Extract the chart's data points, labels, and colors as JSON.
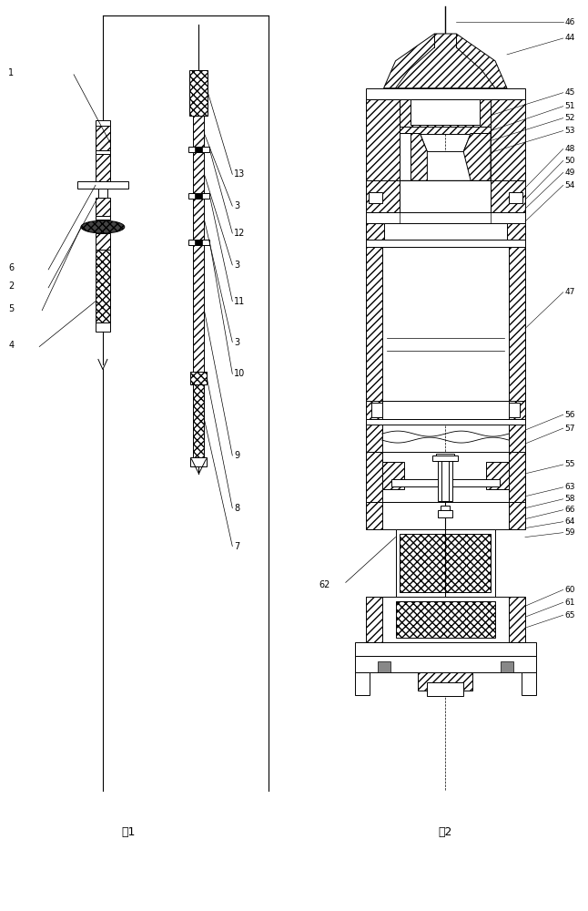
{
  "fig_width": 6.46,
  "fig_height": 10.0,
  "bg_color": "#ffffff",
  "line_color": "#000000"
}
